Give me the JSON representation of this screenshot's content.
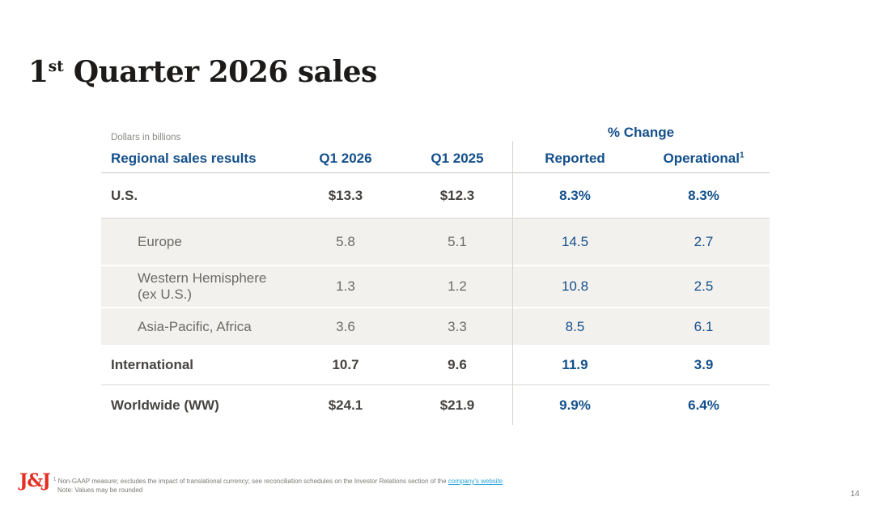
{
  "slide": {
    "title_number": "1",
    "title_sup": "st",
    "title_rest": " Quarter 2026 sales",
    "page_number": "14"
  },
  "table": {
    "units_note": "Dollars in billions",
    "change_header": "% Change",
    "columns": {
      "label": "Regional sales results",
      "q1_2026": "Q1 2026",
      "q1_2025": "Q1 2025",
      "reported": "Reported",
      "operational": "Operational",
      "operational_sup": "1"
    },
    "rows": [
      {
        "label": "U.S.",
        "label2": "",
        "q1_2026": "$13.3",
        "q1_2025": "$12.3",
        "reported": "8.3%",
        "operational": "8.3%"
      },
      {
        "label": "Europe",
        "label2": "",
        "q1_2026": "5.8",
        "q1_2025": "5.1",
        "reported": "14.5",
        "operational": "2.7"
      },
      {
        "label": "Western Hemisphere",
        "label2": "(ex U.S.)",
        "q1_2026": "1.3",
        "q1_2025": "1.2",
        "reported": "10.8",
        "operational": "2.5"
      },
      {
        "label": "Asia-Pacific, Africa",
        "label2": "",
        "q1_2026": "3.6",
        "q1_2025": "3.3",
        "reported": "8.5",
        "operational": "6.1"
      },
      {
        "label": "International",
        "label2": "",
        "q1_2026": "10.7",
        "q1_2025": "9.6",
        "reported": "11.9",
        "operational": "3.9"
      },
      {
        "label": "Worldwide (WW)",
        "label2": "",
        "q1_2026": "$24.1",
        "q1_2025": "$21.9",
        "reported": "9.9%",
        "operational": "6.4%"
      }
    ]
  },
  "footer": {
    "logo": "J&J",
    "footnote_sup": "1",
    "footnote_text": " Non-GAAP measure; excludes the impact of translational currency; see reconciliation schedules on the Investor Relations section of the ",
    "footnote_link": "company's website",
    "note": "Note: Values may be rounded"
  },
  "colors": {
    "accent_blue": "#14508c",
    "text_dark": "#454440",
    "text_gray": "#6d6b66",
    "row_shade": "#f2f1ee",
    "logo_red": "#e32e22",
    "link_blue": "#2aa3dc"
  }
}
